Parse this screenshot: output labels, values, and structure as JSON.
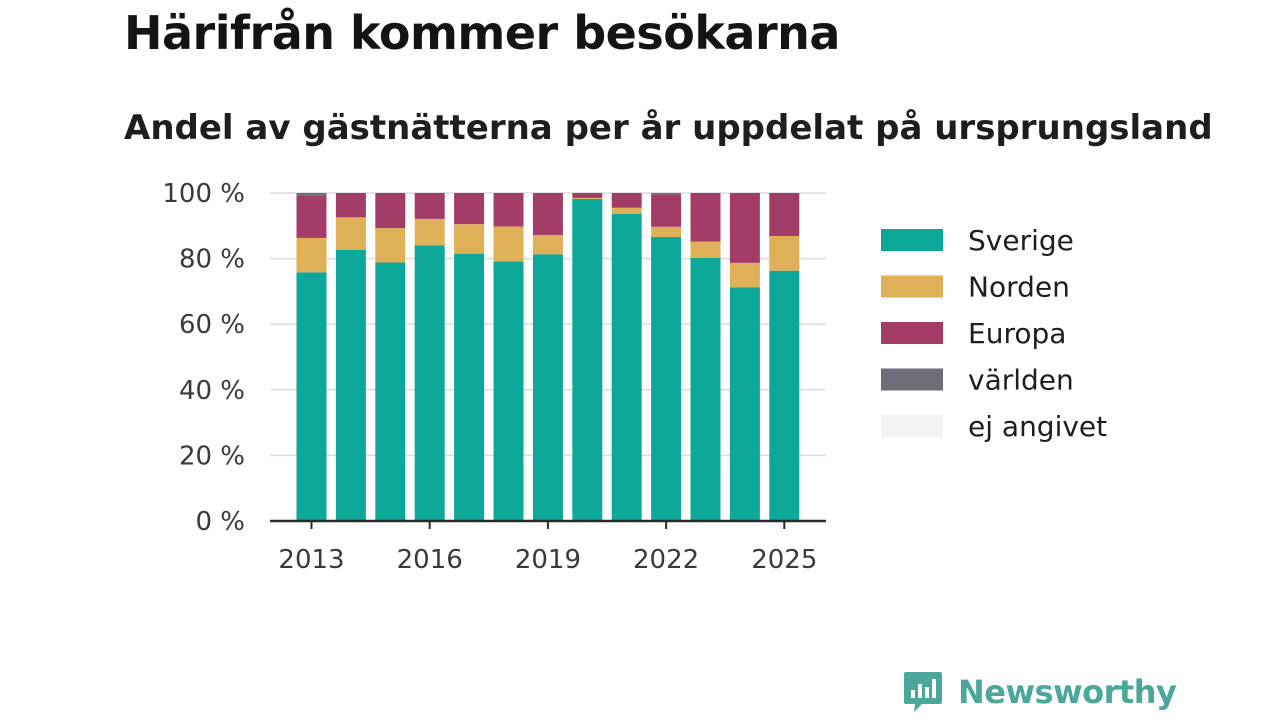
{
  "title": "Härifrån kommer besökarna",
  "subtitle": "Andel av gästnätterna per år uppdelat på ursprungsland",
  "logo_text": "Newsworthy",
  "colors": {
    "Sverige": "#0da89a",
    "Norden": "#deb057",
    "Europa": "#a33d68",
    "världen": "#6e6e78",
    "ej angivet": "#f4f3f3"
  },
  "chart_data": {
    "type": "bar",
    "stacked": true,
    "x": [
      2013,
      2014,
      2015,
      2016,
      2017,
      2018,
      2019,
      2020,
      2021,
      2022,
      2023,
      2024,
      2025
    ],
    "x_tick_labels": [
      "2013",
      "2016",
      "2019",
      "2022",
      "2025"
    ],
    "y_ticks": [
      0,
      20,
      40,
      60,
      80,
      100
    ],
    "y_tick_labels": [
      "0 %",
      "20 %",
      "40 %",
      "60 %",
      "80 %",
      "100 %"
    ],
    "ylim": [
      0,
      100
    ],
    "grid": true,
    "legend_position": "right",
    "series": [
      {
        "name": "Sverige",
        "values": [
          75.8,
          82.7,
          78.8,
          84.0,
          81.5,
          79.1,
          81.3,
          98.2,
          93.6,
          86.6,
          80.2,
          71.2,
          76.3
        ]
      },
      {
        "name": "Norden",
        "values": [
          10.5,
          9.9,
          10.5,
          8.1,
          9.0,
          10.7,
          5.9,
          0.3,
          1.9,
          3.1,
          5.0,
          7.5,
          10.6
        ]
      },
      {
        "name": "Europa",
        "values": [
          12.8,
          7.4,
          10.7,
          7.9,
          9.5,
          10.2,
          12.8,
          1.5,
          4.5,
          9.9,
          14.8,
          21.3,
          13.1
        ]
      },
      {
        "name": "världen",
        "values": [
          0.9,
          0,
          0,
          0,
          0,
          0,
          0,
          0,
          0,
          0.4,
          0,
          0,
          0
        ]
      },
      {
        "name": "ej angivet",
        "values": [
          0,
          0,
          0,
          0,
          0,
          0,
          0,
          0,
          0,
          0,
          0,
          0,
          0
        ]
      }
    ]
  }
}
